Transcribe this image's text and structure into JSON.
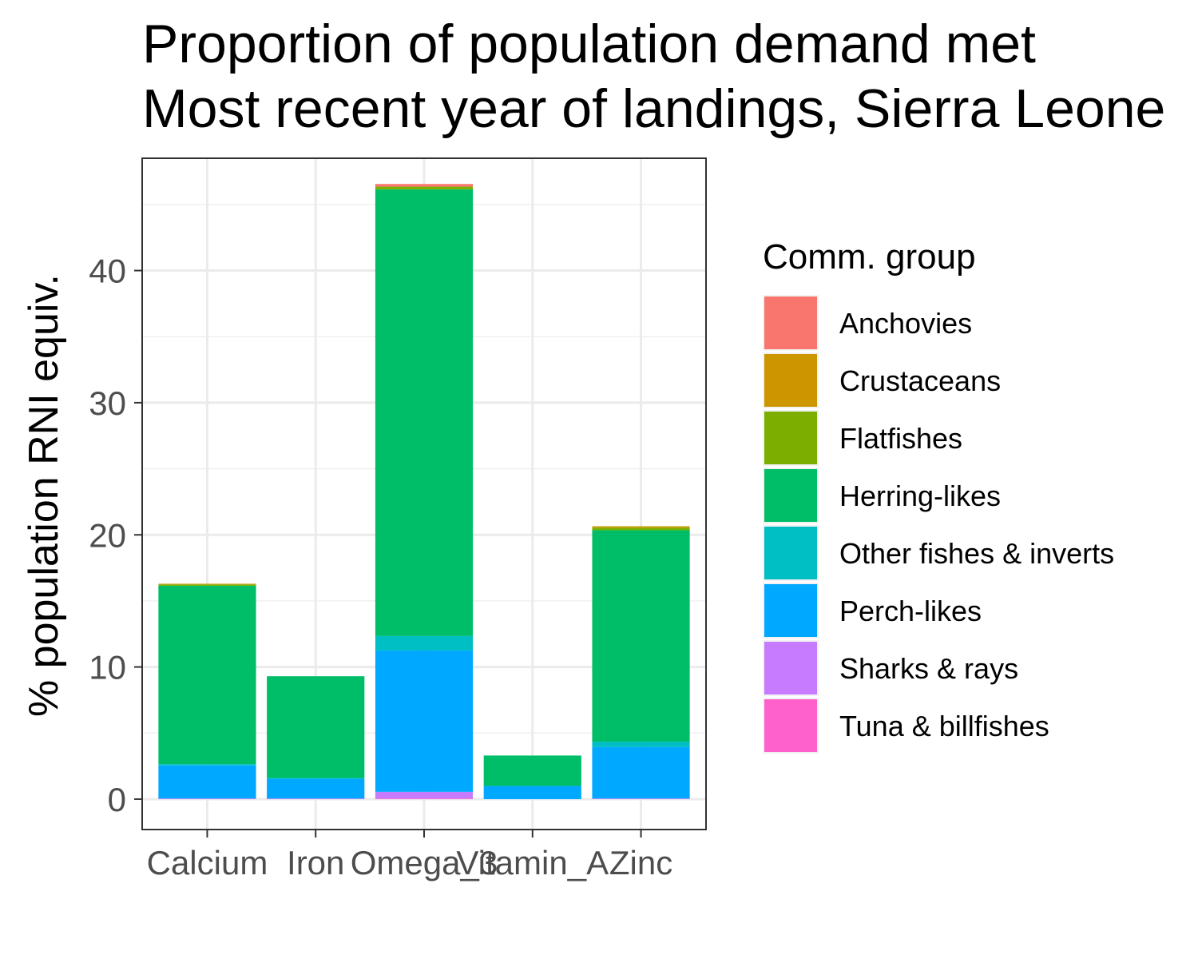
{
  "chart_data": {
    "type": "bar",
    "stacked": true,
    "title": "Proportion of population demand met",
    "subtitle": "Most recent year of landings, Sierra Leone",
    "xlabel": "",
    "ylabel": "% population RNI equiv.",
    "ylim": [
      -2.3,
      48.5
    ],
    "yticks": [
      0,
      10,
      20,
      30,
      40
    ],
    "grid": true,
    "legend_position": "right",
    "legend_title": "Comm. group",
    "categories": [
      "Calcium",
      "Iron",
      "Omega_3",
      "Vitamin_A",
      "Zinc"
    ],
    "series": [
      {
        "name": "Anchovies",
        "color": "#F8766D",
        "values": [
          0,
          0,
          0.2,
          0,
          0
        ]
      },
      {
        "name": "Crustaceans",
        "color": "#CD9600",
        "values": [
          0.05,
          0,
          0,
          0,
          0.1
        ]
      },
      {
        "name": "Flatfishes",
        "color": "#7CAE00",
        "values": [
          0.1,
          0,
          0.2,
          0,
          0.2
        ]
      },
      {
        "name": "Herring-likes",
        "color": "#00BE67",
        "values": [
          13.5,
          7.7,
          33.8,
          2.3,
          16.0
        ]
      },
      {
        "name": "Other fishes & inverts",
        "color": "#00BFC4",
        "values": [
          0.1,
          0.05,
          1.1,
          0,
          0.4
        ]
      },
      {
        "name": "Perch-likes",
        "color": "#00A9FF",
        "values": [
          2.5,
          1.5,
          10.7,
          1.0,
          3.9
        ]
      },
      {
        "name": "Sharks & rays",
        "color": "#C77CFF",
        "values": [
          0.05,
          0.05,
          0.5,
          0,
          0.05
        ]
      },
      {
        "name": "Tuna & billfishes",
        "color": "#FF61CC",
        "values": [
          0,
          0,
          0.05,
          0,
          0
        ]
      }
    ]
  }
}
